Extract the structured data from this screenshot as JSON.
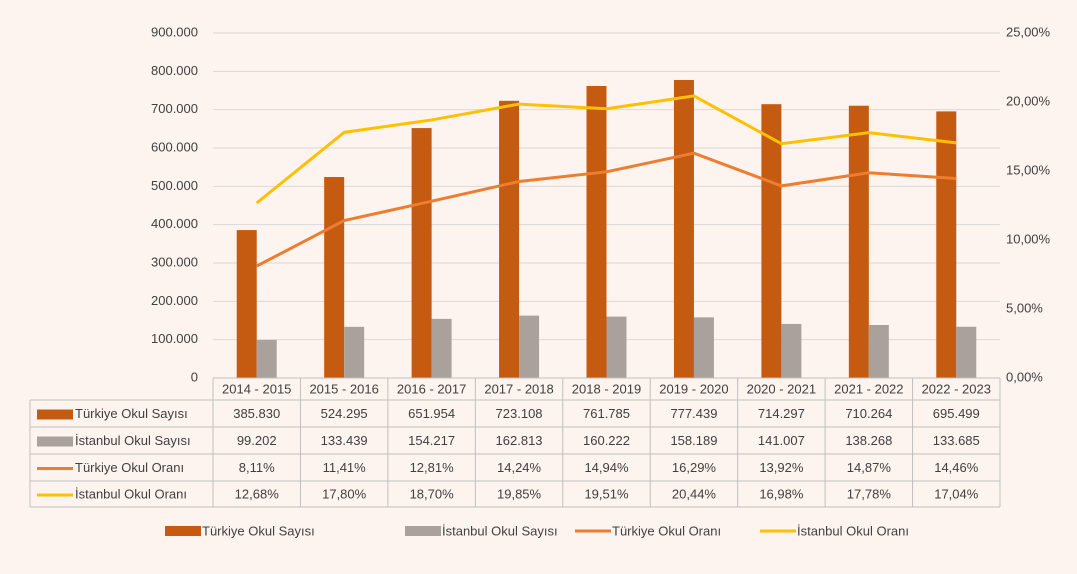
{
  "chart_data": {
    "type": "bar",
    "categories": [
      "2014 - 2015",
      "2015 - 2016",
      "2016 - 2017",
      "2017 - 2018",
      "2018 - 2019",
      "2019 - 2020",
      "2020 - 2021",
      "2021 - 2022",
      "2022 - 2023"
    ],
    "series": [
      {
        "name": "Türkiye Okul Sayısı",
        "type": "bar",
        "color": "#c55a11",
        "values": [
          385830,
          524295,
          651954,
          723108,
          761785,
          777439,
          714297,
          710264,
          695499
        ],
        "value_labels": [
          "385.830",
          "524.295",
          "651.954",
          "723.108",
          "761.785",
          "777.439",
          "714.297",
          "710.264",
          "695.499"
        ]
      },
      {
        "name": "İstanbul Okul Sayısı",
        "type": "bar",
        "color": "#aaa19c",
        "values": [
          99202,
          133439,
          154217,
          162813,
          160222,
          158189,
          141007,
          138268,
          133685
        ],
        "value_labels": [
          "99.202",
          "133.439",
          "154.217",
          "162.813",
          "160.222",
          "158.189",
          "141.007",
          "138.268",
          "133.685"
        ]
      },
      {
        "name": "Türkiye Okul Oranı",
        "type": "line",
        "axis": "y2",
        "color": "#ed7d31",
        "values": [
          8.11,
          11.41,
          12.81,
          14.24,
          14.94,
          16.29,
          13.92,
          14.87,
          14.46
        ],
        "value_labels": [
          "8,11%",
          "11,41%",
          "12,81%",
          "14,24%",
          "14,94%",
          "16,29%",
          "13,92%",
          "14,87%",
          "14,46%"
        ]
      },
      {
        "name": "İstanbul Okul Oranı",
        "type": "line",
        "axis": "y2",
        "color": "#ffc000",
        "values": [
          12.68,
          17.8,
          18.7,
          19.85,
          19.51,
          20.44,
          16.98,
          17.78,
          17.04
        ],
        "value_labels": [
          "12,68%",
          "17,80%",
          "18,70%",
          "19,85%",
          "19,51%",
          "20,44%",
          "16,98%",
          "17,78%",
          "17,04%"
        ]
      }
    ],
    "ylim": [
      0,
      900000
    ],
    "yticks": [
      0,
      {
        "value": 100000,
        "label": "100.000"
      },
      {
        "value": 200000,
        "label": "200.000"
      },
      {
        "value": 300000,
        "label": "300.000"
      },
      {
        "value": 400000,
        "label": "400.000"
      },
      {
        "value": 500000,
        "label": "500.000"
      },
      {
        "value": 600000,
        "label": "600.000"
      },
      {
        "value": 700000,
        "label": "700.000"
      },
      {
        "value": 800000,
        "label": "800.000"
      },
      {
        "value": 900000,
        "label": "900.000"
      }
    ],
    "y2lim": [
      0,
      25
    ],
    "y2ticks": [
      {
        "value": 0,
        "label": "0,00%"
      },
      {
        "value": 5,
        "label": "5,00%"
      },
      {
        "value": 10,
        "label": "10,00%"
      },
      {
        "value": 15,
        "label": "15,00%"
      },
      {
        "value": 20,
        "label": "20,00%"
      },
      {
        "value": 25,
        "label": "25,00%"
      }
    ],
    "grid": true,
    "legend": "bottom"
  }
}
